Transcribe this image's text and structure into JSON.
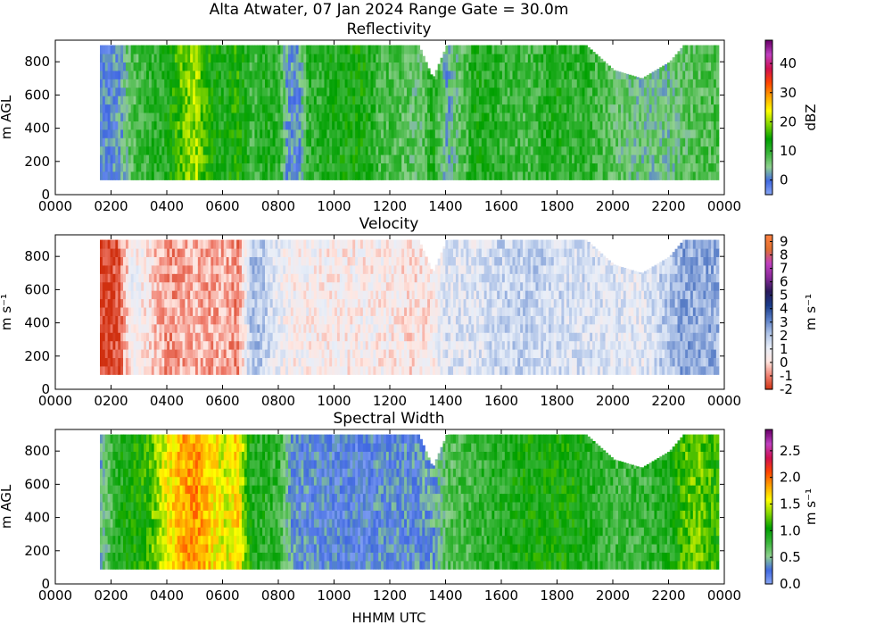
{
  "figure": {
    "title": "Alta Atwater, 07 Jan 2024 Range Gate = 30.0m",
    "xlabel": "HHMM UTC"
  },
  "chart_data": [
    {
      "type": "heatmap",
      "title": "Reflectivity",
      "ylabel": "m AGL",
      "colorbar_label": "dBZ",
      "colorbar_range": [
        -5,
        48
      ],
      "colorbar_ticks": [
        "0",
        "10",
        "20",
        "30",
        "40"
      ],
      "colorbar_tick_values": [
        0,
        10,
        20,
        30,
        40
      ],
      "colors": [
        "#8aa8f5",
        "#4169e1",
        "#8fd08f",
        "#39b539",
        "#00a000",
        "#7fd400",
        "#ffff00",
        "#ffa500",
        "#ff4500",
        "#d01050",
        "#c040c0",
        "#6a006a"
      ],
      "xlim": [
        0,
        24
      ],
      "ylim": [
        0,
        930
      ],
      "x_ticks": [
        "0000",
        "0200",
        "0400",
        "0600",
        "0800",
        "1000",
        "1200",
        "1400",
        "1600",
        "1800",
        "2000",
        "2200",
        "0000"
      ],
      "x_tick_values": [
        0,
        2,
        4,
        6,
        8,
        10,
        12,
        14,
        16,
        18,
        20,
        22,
        24
      ],
      "y_ticks": [
        "0",
        "200",
        "400",
        "600",
        "800"
      ],
      "y_tick_values": [
        0,
        200,
        400,
        600,
        800
      ],
      "profile": {
        "hours": [
          1.6,
          2.2,
          2.7,
          3.2,
          4.0,
          4.5,
          5.0,
          5.5,
          6.0,
          6.5,
          7.0,
          7.5,
          8.0,
          8.3,
          8.6,
          9.0,
          10.0,
          11.0,
          11.6,
          12.0,
          12.5,
          13.0,
          13.5,
          14.0,
          15.0,
          16.0,
          17.0,
          18.0,
          18.5,
          19.0,
          20.0,
          21.0,
          22.0,
          22.5,
          23.0,
          23.8
        ],
        "values": [
          0,
          1,
          8,
          10,
          12,
          18,
          20,
          14,
          12,
          15,
          9,
          12,
          10,
          2,
          0,
          10,
          12,
          13,
          9,
          9,
          8,
          6,
          12,
          3,
          12,
          10,
          9,
          12,
          10,
          11,
          7,
          5,
          5,
          7,
          8,
          9
        ],
        "top_m": [
          900,
          900,
          900,
          900,
          900,
          900,
          900,
          900,
          900,
          900,
          900,
          900,
          900,
          900,
          900,
          900,
          900,
          900,
          900,
          900,
          900,
          900,
          700,
          900,
          900,
          900,
          900,
          900,
          900,
          900,
          750,
          700,
          800,
          900,
          900,
          900
        ]
      }
    },
    {
      "type": "heatmap",
      "title": "Velocity",
      "ylabel": "m s⁻¹",
      "colorbar_label": "m s⁻¹",
      "colorbar_range": [
        -2,
        9.5
      ],
      "colorbar_ticks": [
        "-2",
        "-1",
        "0",
        "1",
        "2",
        "3",
        "4",
        "5",
        "6",
        "7",
        "8",
        "9"
      ],
      "colorbar_tick_values": [
        -2,
        -1,
        0,
        1,
        2,
        3,
        4,
        5,
        6,
        7,
        8,
        9
      ],
      "colors": [
        "#d03010",
        "#f08070",
        "#ffe6e0",
        "#e8eef8",
        "#b0c4e8",
        "#5a7fc8",
        "#1a3c8a",
        "#2a1a5a",
        "#8a2a9a",
        "#c040c0",
        "#e07030",
        "#ff8040"
      ],
      "xlim": [
        0,
        24
      ],
      "ylim": [
        0,
        930
      ],
      "x_ticks": [
        "0000",
        "0200",
        "0400",
        "0600",
        "0800",
        "1000",
        "1200",
        "1400",
        "1600",
        "1800",
        "2000",
        "2200",
        "0000"
      ],
      "x_tick_values": [
        0,
        2,
        4,
        6,
        8,
        10,
        12,
        14,
        16,
        18,
        20,
        22,
        24
      ],
      "y_ticks": [
        "0",
        "200",
        "400",
        "600",
        "800"
      ],
      "y_tick_values": [
        0,
        200,
        400,
        600,
        800
      ],
      "profile": {
        "hours": [
          1.6,
          2.2,
          2.7,
          3.2,
          4.0,
          4.5,
          5.0,
          5.5,
          6.0,
          6.5,
          7.0,
          7.5,
          8.0,
          8.3,
          8.6,
          9.0,
          10.0,
          11.0,
          11.6,
          12.0,
          12.5,
          13.0,
          13.5,
          14.0,
          15.0,
          16.0,
          17.0,
          18.0,
          18.5,
          19.0,
          20.0,
          21.0,
          22.0,
          22.5,
          23.0,
          23.8
        ],
        "values": [
          -1.8,
          -1.5,
          0.8,
          0.4,
          -0.8,
          -0.5,
          -0.3,
          -0.6,
          -0.4,
          -0.9,
          2.2,
          1.8,
          0.9,
          0.7,
          0.6,
          0.6,
          0.5,
          0.5,
          0.5,
          0.5,
          0.3,
          0.2,
          0.4,
          1.4,
          1.3,
          1.7,
          1.8,
          1.6,
          1.5,
          1.5,
          1.3,
          1.1,
          2.1,
          2.6,
          2.5,
          2.4
        ],
        "top_m": [
          900,
          900,
          900,
          900,
          900,
          900,
          900,
          900,
          900,
          900,
          900,
          900,
          900,
          900,
          900,
          900,
          900,
          900,
          900,
          900,
          900,
          900,
          700,
          900,
          900,
          900,
          900,
          900,
          900,
          900,
          750,
          700,
          800,
          900,
          900,
          900
        ]
      }
    },
    {
      "type": "heatmap",
      "title": "Spectral Width",
      "ylabel": "m AGL",
      "colorbar_label": "m s⁻¹",
      "colorbar_range": [
        0,
        2.9
      ],
      "colorbar_ticks": [
        "0.0",
        "0.5",
        "1.0",
        "1.5",
        "2.0",
        "2.5"
      ],
      "colorbar_tick_values": [
        0,
        0.5,
        1,
        1.5,
        2,
        2.5
      ],
      "colors": [
        "#8aa8f5",
        "#4169e1",
        "#8fd08f",
        "#39b539",
        "#00a000",
        "#7fd400",
        "#ffff00",
        "#ffa500",
        "#ff4500",
        "#d01050",
        "#c040c0",
        "#6a006a"
      ],
      "xlim": [
        0,
        24
      ],
      "ylim": [
        0,
        930
      ],
      "x_ticks": [
        "0000",
        "0200",
        "0400",
        "0600",
        "0800",
        "1000",
        "1200",
        "1400",
        "1600",
        "1800",
        "2000",
        "2200",
        "0000"
      ],
      "x_tick_values": [
        0,
        2,
        4,
        6,
        8,
        10,
        12,
        14,
        16,
        18,
        20,
        22,
        24
      ],
      "y_ticks": [
        "0",
        "200",
        "400",
        "600",
        "800"
      ],
      "y_tick_values": [
        0,
        200,
        400,
        600,
        800
      ],
      "profile": {
        "hours": [
          1.6,
          2.2,
          2.7,
          3.2,
          4.0,
          4.5,
          5.0,
          5.5,
          6.0,
          6.5,
          7.0,
          7.5,
          8.0,
          8.3,
          8.6,
          9.0,
          10.0,
          11.0,
          11.6,
          12.0,
          12.5,
          13.0,
          13.5,
          14.0,
          15.0,
          16.0,
          17.0,
          18.0,
          18.5,
          19.0,
          20.0,
          21.0,
          22.0,
          22.5,
          23.0,
          23.8
        ],
        "values": [
          0.5,
          0.9,
          1.0,
          1.1,
          1.6,
          1.8,
          1.9,
          1.7,
          1.5,
          1.7,
          0.9,
          0.9,
          0.8,
          0.5,
          0.3,
          0.3,
          0.25,
          0.25,
          0.3,
          0.3,
          0.3,
          0.3,
          0.4,
          0.7,
          0.8,
          0.9,
          1.0,
          1.0,
          1.0,
          0.9,
          0.8,
          0.8,
          0.9,
          1.2,
          1.3,
          1.1
        ],
        "top_m": [
          900,
          900,
          900,
          900,
          900,
          900,
          900,
          900,
          900,
          900,
          900,
          900,
          900,
          900,
          900,
          900,
          900,
          900,
          900,
          900,
          900,
          900,
          700,
          900,
          900,
          900,
          900,
          900,
          900,
          900,
          750,
          700,
          800,
          900,
          900,
          900
        ]
      }
    }
  ]
}
